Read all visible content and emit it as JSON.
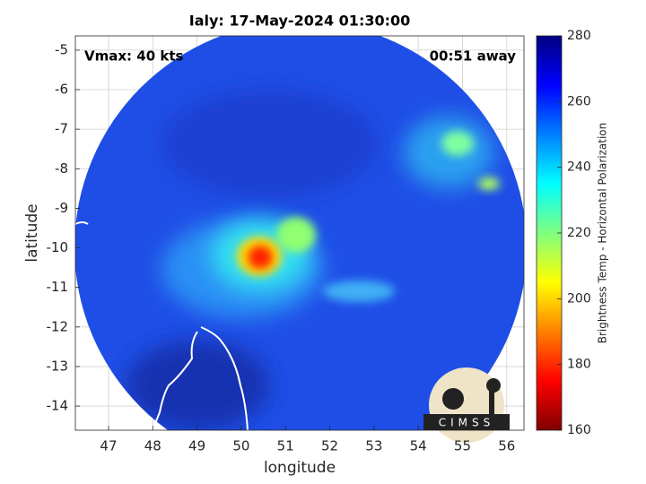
{
  "chart_data": {
    "type": "heatmap",
    "title": "Ialy: 17-May-2024 01:30:00",
    "annotations": [
      "Vmax: 40 kts",
      "00:51 away"
    ],
    "x_label": "longitude",
    "y_label": "latitude",
    "xlim": [
      46.25,
      56.39
    ],
    "ylim": [
      -14.61,
      -4.64
    ],
    "xticks": [
      47,
      48,
      49,
      50,
      51,
      52,
      53,
      54,
      55,
      56
    ],
    "yticks": [
      -5,
      -6,
      -7,
      -8,
      -9,
      -10,
      -11,
      -12,
      -13,
      -14
    ],
    "grid": true,
    "colorbar": {
      "label": "Brightness Temp - Horizontal Polarization",
      "lim": [
        160,
        280
      ],
      "ticks": [
        160,
        180,
        200,
        220,
        240,
        260,
        280
      ],
      "colormap": "jet"
    },
    "logo_text": "CIMSS"
  }
}
